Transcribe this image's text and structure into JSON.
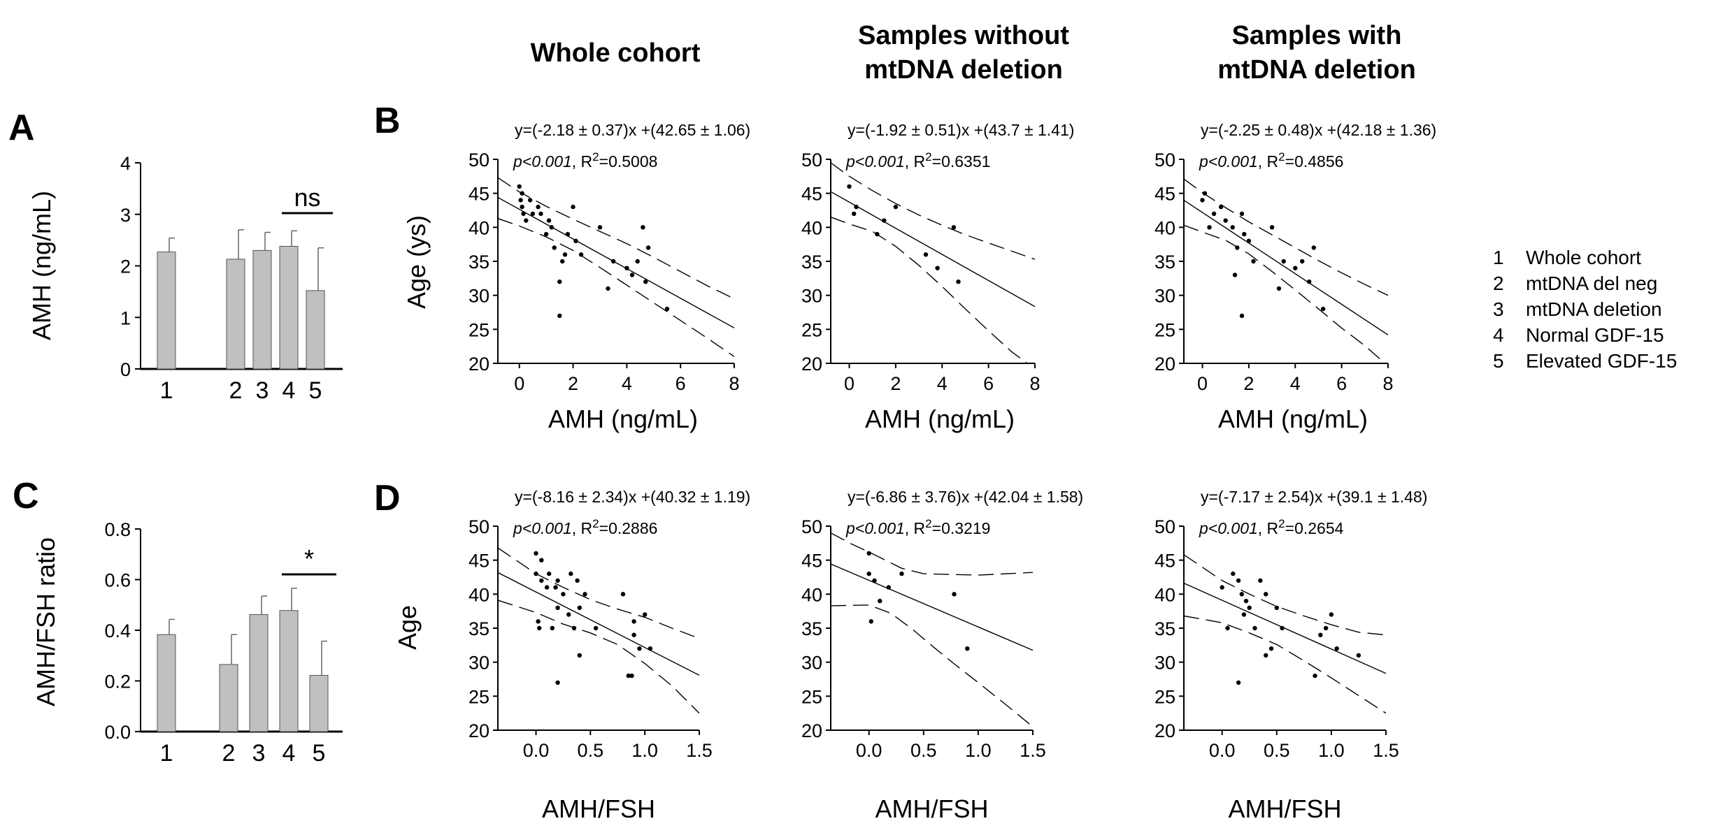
{
  "column_headers": [
    "Whole cohort",
    "Samples without mtDNA deletion",
    "Samples with mtDNA deletion"
  ],
  "column_header_lines": [
    [
      "Whole cohort"
    ],
    [
      "Samples without",
      "mtDNA deletion"
    ],
    [
      "Samples with",
      "mtDNA deletion"
    ]
  ],
  "legend": {
    "items": [
      {
        "num": "1",
        "label": "Whole cohort"
      },
      {
        "num": "2",
        "label": "mtDNA del neg"
      },
      {
        "num": "3",
        "label": "mtDNA deletion"
      },
      {
        "num": "4",
        "label": "Normal GDF-15"
      },
      {
        "num": "5",
        "label": "Elevated GDF-15"
      }
    ]
  },
  "chart_data": [
    {
      "panel": "A",
      "type": "bar",
      "categories": [
        "1",
        "2",
        "3",
        "4",
        "5"
      ],
      "values": [
        2.27,
        2.13,
        2.3,
        2.38,
        1.52
      ],
      "errors": [
        0.27,
        0.57,
        0.35,
        0.3,
        0.83
      ],
      "ylabel": "AMH (ng/mL)",
      "ylim": [
        0,
        4
      ],
      "yticks": [
        "0",
        "1",
        "2",
        "3",
        "4"
      ],
      "significance": {
        "between": [
          "4",
          "5"
        ],
        "label": "ns"
      }
    },
    {
      "panel": "B",
      "column": "Whole cohort",
      "type": "scatter",
      "xlabel": "AMH (ng/mL)",
      "ylabel": "Age (ys)",
      "xlim": [
        -0.8,
        8
      ],
      "ylim": [
        20,
        50
      ],
      "xticks": [
        "0",
        "2",
        "4",
        "6",
        "8"
      ],
      "yticks": [
        "20",
        "25",
        "30",
        "35",
        "40",
        "45",
        "50"
      ],
      "equation": "y=(-2.18 ± 0.37)x +(42.65 ± 1.06)",
      "p_label": "p<0.001",
      "r2_prefix": "R",
      "r2_sup": "2",
      "r2_value": "=0.5008",
      "fit": {
        "slope": -2.18,
        "intercept": 42.65
      },
      "ci_upper": [
        [
          -0.8,
          47.3
        ],
        [
          0,
          45.2
        ],
        [
          1,
          43.1
        ],
        [
          2,
          41.2
        ],
        [
          3,
          39.4
        ],
        [
          4,
          37.6
        ],
        [
          5,
          35.6
        ],
        [
          6,
          33.5
        ],
        [
          7,
          31.4
        ],
        [
          8,
          29.5
        ]
      ],
      "ci_lower": [
        [
          -0.8,
          41.3
        ],
        [
          0,
          40.2
        ],
        [
          1,
          38.6
        ],
        [
          2,
          36.6
        ],
        [
          3,
          34.1
        ],
        [
          4,
          31.5
        ],
        [
          5,
          28.9
        ],
        [
          6,
          26.3
        ],
        [
          7,
          23.7
        ],
        [
          8,
          21.0
        ]
      ],
      "x": [
        0.0,
        0.05,
        0.1,
        0.15,
        0.25,
        0.4,
        0.5,
        0.7,
        0.8,
        1.0,
        1.1,
        1.2,
        1.3,
        1.5,
        1.6,
        1.7,
        1.8,
        2.0,
        2.1,
        2.3,
        3.0,
        3.3,
        3.5,
        4.0,
        4.2,
        4.4,
        4.6,
        4.7,
        4.8,
        5.5,
        1.5,
        0.1
      ],
      "y": [
        46,
        44,
        45,
        42,
        41,
        44,
        42,
        43,
        42,
        39,
        41,
        40,
        37,
        32,
        35,
        36,
        39,
        43,
        38,
        36,
        40,
        31,
        35,
        34,
        33,
        35,
        40,
        32,
        37,
        28,
        27,
        43
      ]
    },
    {
      "panel": "B",
      "column": "Samples without mtDNA deletion",
      "type": "scatter",
      "xlabel": "AMH (ng/mL)",
      "ylabel": "",
      "xlim": [
        -0.8,
        8
      ],
      "ylim": [
        20,
        50
      ],
      "xticks": [
        "0",
        "2",
        "4",
        "6",
        "8"
      ],
      "yticks": [
        "20",
        "25",
        "30",
        "35",
        "40",
        "45",
        "50"
      ],
      "equation": "y=(-1.92 ± 0.51)x +(43.7 ± 1.41)",
      "p_label": "p<0.001",
      "r2_prefix": "R",
      "r2_sup": "2",
      "r2_value": "=0.6351",
      "fit": {
        "slope": -1.92,
        "intercept": 43.7
      },
      "ci_upper": [
        [
          -0.8,
          49.5
        ],
        [
          0,
          47.5
        ],
        [
          1,
          45.4
        ],
        [
          2,
          43.5
        ],
        [
          3,
          41.8
        ],
        [
          4,
          40.3
        ],
        [
          5,
          38.9
        ],
        [
          6,
          37.7
        ],
        [
          7,
          36.5
        ],
        [
          8,
          35.3
        ]
      ],
      "ci_lower": [
        [
          -0.8,
          41.5
        ],
        [
          0,
          40.5
        ],
        [
          1,
          39.4
        ],
        [
          2,
          37.2
        ],
        [
          3,
          34.4
        ],
        [
          4,
          31.3
        ],
        [
          5,
          28.0
        ],
        [
          6,
          24.8
        ],
        [
          7,
          21.7
        ],
        [
          8,
          19.2
        ]
      ],
      "x": [
        0.0,
        0.2,
        0.3,
        1.2,
        1.5,
        2.0,
        3.3,
        3.8,
        4.5,
        4.7
      ],
      "y": [
        46,
        42,
        43,
        39,
        41,
        43,
        36,
        34,
        40,
        32
      ]
    },
    {
      "panel": "B",
      "column": "Samples with mtDNA deletion",
      "type": "scatter",
      "xlabel": "AMH (ng/mL)",
      "ylabel": "",
      "xlim": [
        -0.8,
        8
      ],
      "ylim": [
        20,
        50
      ],
      "xticks": [
        "0",
        "2",
        "4",
        "6",
        "8"
      ],
      "yticks": [
        "20",
        "25",
        "30",
        "35",
        "40",
        "45",
        "50"
      ],
      "equation": "y=(-2.25 ± 0.48)x +(42.18 ± 1.36)",
      "p_label": "p<0.001",
      "r2_prefix": "R",
      "r2_sup": "2",
      "r2_value": "=0.4856",
      "fit": {
        "slope": -2.25,
        "intercept": 42.18
      },
      "ci_upper": [
        [
          -0.8,
          47.1
        ],
        [
          0,
          45.1
        ],
        [
          1,
          42.9
        ],
        [
          2,
          40.8
        ],
        [
          3,
          38.9
        ],
        [
          4,
          37.0
        ],
        [
          5,
          35.1
        ],
        [
          6,
          33.3
        ],
        [
          7,
          31.6
        ],
        [
          8,
          30.0
        ]
      ],
      "ci_lower": [
        [
          -0.8,
          40.3
        ],
        [
          0,
          39.3
        ],
        [
          1,
          38.1
        ],
        [
          2,
          36.1
        ],
        [
          3,
          33.5
        ],
        [
          4,
          30.8
        ],
        [
          5,
          28.0
        ],
        [
          6,
          25.2
        ],
        [
          7,
          22.6
        ],
        [
          8,
          19.6
        ]
      ],
      "x": [
        0.0,
        0.1,
        0.3,
        0.5,
        0.8,
        1.0,
        1.3,
        1.5,
        1.7,
        1.8,
        2.0,
        2.2,
        3.0,
        3.3,
        3.5,
        4.0,
        4.3,
        4.6,
        4.8,
        5.2,
        1.7,
        1.4
      ],
      "y": [
        44,
        45,
        40,
        42,
        43,
        41,
        40,
        37,
        42,
        39,
        38,
        35,
        40,
        31,
        35,
        34,
        35,
        32,
        37,
        28,
        27,
        33
      ]
    },
    {
      "panel": "C",
      "type": "bar",
      "categories": [
        "1",
        "2",
        "3",
        "4",
        "5"
      ],
      "values": [
        0.383,
        0.265,
        0.462,
        0.478,
        0.222
      ],
      "errors": [
        0.06,
        0.118,
        0.073,
        0.088,
        0.135
      ],
      "ylabel": "AMH/FSH ratio",
      "ylim": [
        0,
        0.8
      ],
      "yticks": [
        "0.0",
        "0.2",
        "0.4",
        "0.6",
        "0.8"
      ],
      "significance": {
        "between": [
          "4",
          "5"
        ],
        "label": "*"
      }
    },
    {
      "panel": "D",
      "column": "Whole cohort",
      "type": "scatter",
      "xlabel": "AMH/FSH",
      "ylabel": "Age",
      "xlim": [
        -0.35,
        1.5
      ],
      "ylim": [
        20,
        50
      ],
      "xticks": [
        "0.0",
        "0.5",
        "1.0",
        "1.5"
      ],
      "yticks": [
        "20",
        "25",
        "30",
        "35",
        "40",
        "45",
        "50"
      ],
      "equation": "y=(-8.16 ± 2.34)x +(40.32 ± 1.19)",
      "p_label": "p<0.001",
      "r2_prefix": "R",
      "r2_sup": "2",
      "r2_value": "=0.2886",
      "fit": {
        "slope": -8.16,
        "intercept": 40.32
      },
      "ci_upper": [
        [
          -0.35,
          46.8
        ],
        [
          0,
          43.0
        ],
        [
          0.25,
          41.0
        ],
        [
          0.5,
          39.2
        ],
        [
          0.75,
          37.8
        ],
        [
          1.0,
          36.6
        ],
        [
          1.25,
          35.0
        ],
        [
          1.5,
          33.5
        ]
      ],
      "ci_lower": [
        [
          -0.35,
          39.1
        ],
        [
          0,
          37.3
        ],
        [
          0.25,
          35.6
        ],
        [
          0.5,
          34.3
        ],
        [
          0.75,
          32.6
        ],
        [
          1.0,
          29.8
        ],
        [
          1.25,
          26.5
        ],
        [
          1.5,
          22.5
        ]
      ],
      "x": [
        0.0,
        0.0,
        0.02,
        0.05,
        0.05,
        0.1,
        0.12,
        0.15,
        0.18,
        0.2,
        0.2,
        0.25,
        0.3,
        0.32,
        0.35,
        0.38,
        0.4,
        0.45,
        0.55,
        0.8,
        0.85,
        0.9,
        0.9,
        0.95,
        1.0,
        1.05,
        0.2,
        0.4,
        0.03,
        0.88
      ],
      "y": [
        46,
        43,
        36,
        42,
        45,
        41,
        43,
        35,
        41,
        38,
        42,
        40,
        37,
        43,
        35,
        42,
        38,
        40,
        35,
        40,
        28,
        34,
        36,
        32,
        37,
        32,
        27,
        31,
        35,
        28
      ]
    },
    {
      "panel": "D",
      "column": "Samples without mtDNA deletion",
      "type": "scatter",
      "xlabel": "AMH/FSH",
      "ylabel": "",
      "xlim": [
        -0.35,
        1.5
      ],
      "ylim": [
        20,
        50
      ],
      "xticks": [
        "0.0",
        "0.5",
        "1.0",
        "1.5"
      ],
      "yticks": [
        "20",
        "25",
        "30",
        "35",
        "40",
        "45",
        "50"
      ],
      "equation": "y=(-6.86 ± 3.76)x +(42.04 ± 1.58)",
      "p_label": "p<0.001",
      "r2_prefix": "R",
      "r2_sup": "2",
      "r2_value": "=0.3219",
      "fit": {
        "slope": -6.86,
        "intercept": 42.04
      },
      "ci_upper": [
        [
          -0.35,
          49.0
        ],
        [
          -0.15,
          47.3
        ],
        [
          0.0,
          46.2
        ],
        [
          0.15,
          45.0
        ],
        [
          0.3,
          43.8
        ],
        [
          0.5,
          43.0
        ],
        [
          0.75,
          42.9
        ],
        [
          1.0,
          42.8
        ],
        [
          1.5,
          43.2
        ]
      ],
      "ci_lower": [
        [
          -0.35,
          38.3
        ],
        [
          0.0,
          38.4
        ],
        [
          0.2,
          37.2
        ],
        [
          0.4,
          34.8
        ],
        [
          0.6,
          32.1
        ],
        [
          0.8,
          29.5
        ],
        [
          1.0,
          27.0
        ],
        [
          1.25,
          23.8
        ],
        [
          1.5,
          20.5
        ]
      ],
      "x": [
        0.0,
        0.0,
        0.02,
        0.05,
        0.1,
        0.18,
        0.3,
        0.78,
        0.9
      ],
      "y": [
        46,
        43,
        36,
        42,
        39,
        41,
        43,
        40,
        32
      ]
    },
    {
      "panel": "D",
      "column": "Samples with mtDNA deletion",
      "type": "scatter",
      "xlabel": "AMH/FSH",
      "ylabel": "",
      "xlim": [
        -0.35,
        1.5
      ],
      "ylim": [
        20,
        50
      ],
      "xticks": [
        "0.0",
        "0.5",
        "1.0",
        "1.5"
      ],
      "yticks": [
        "20",
        "25",
        "30",
        "35",
        "40",
        "45",
        "50"
      ],
      "equation": "y=(-7.17 ± 2.54)x +(39.1 ± 1.48)",
      "p_label": "p<0.001",
      "r2_prefix": "R",
      "r2_sup": "2",
      "r2_value": "=0.2654",
      "fit": {
        "slope": -7.17,
        "intercept": 39.1
      },
      "ci_upper": [
        [
          -0.35,
          45.8
        ],
        [
          0,
          42.0
        ],
        [
          0.25,
          40.0
        ],
        [
          0.5,
          38.2
        ],
        [
          0.75,
          36.8
        ],
        [
          1.0,
          35.5
        ],
        [
          1.25,
          34.4
        ],
        [
          1.5,
          34.0
        ]
      ],
      "ci_lower": [
        [
          -0.35,
          36.8
        ],
        [
          0,
          35.8
        ],
        [
          0.25,
          34.3
        ],
        [
          0.5,
          32.6
        ],
        [
          0.75,
          30.2
        ],
        [
          1.0,
          27.7
        ],
        [
          1.25,
          25.1
        ],
        [
          1.5,
          22.5
        ]
      ],
      "x": [
        0.0,
        0.05,
        0.1,
        0.15,
        0.18,
        0.2,
        0.22,
        0.25,
        0.3,
        0.35,
        0.4,
        0.45,
        0.5,
        0.55,
        0.85,
        0.9,
        0.95,
        1.0,
        1.05,
        1.25,
        0.15,
        0.4
      ],
      "y": [
        41,
        35,
        43,
        42,
        40,
        37,
        39,
        38,
        35,
        42,
        40,
        32,
        38,
        35,
        28,
        34,
        35,
        37,
        32,
        31,
        27,
        31
      ]
    }
  ]
}
